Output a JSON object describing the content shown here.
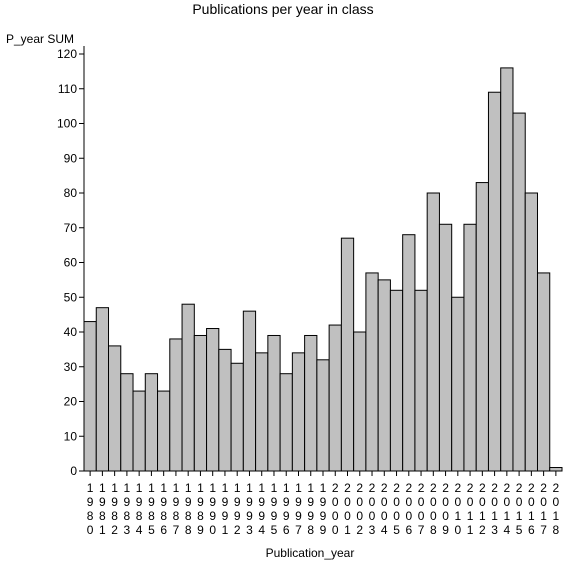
{
  "chart_data": {
    "type": "bar",
    "title": "Publications per year in class",
    "xlabel": "Publication_year",
    "ylabel": "P_year SUM",
    "ylim": [
      0,
      120
    ],
    "yticks": [
      0,
      10,
      20,
      30,
      40,
      50,
      60,
      70,
      80,
      90,
      100,
      110,
      120
    ],
    "grid": false,
    "colors": {
      "bar_fill": "#c0c0c0",
      "bar_stroke": "#000000",
      "axis": "#000000"
    },
    "categories": [
      "1980",
      "1981",
      "1982",
      "1983",
      "1984",
      "1985",
      "1986",
      "1987",
      "1988",
      "1989",
      "1990",
      "1991",
      "1992",
      "1993",
      "1994",
      "1995",
      "1996",
      "1997",
      "1998",
      "1999",
      "2000",
      "2001",
      "2002",
      "2003",
      "2004",
      "2005",
      "2006",
      "2007",
      "2008",
      "2009",
      "2010",
      "2011",
      "2012",
      "2013",
      "2014",
      "2015",
      "2016",
      "2017",
      "2018"
    ],
    "values": [
      43,
      47,
      36,
      28,
      23,
      28,
      23,
      38,
      48,
      39,
      41,
      35,
      31,
      46,
      34,
      39,
      28,
      34,
      39,
      32,
      42,
      67,
      40,
      57,
      55,
      52,
      68,
      52,
      80,
      71,
      50,
      71,
      83,
      109,
      116,
      103,
      80,
      57,
      1
    ]
  }
}
